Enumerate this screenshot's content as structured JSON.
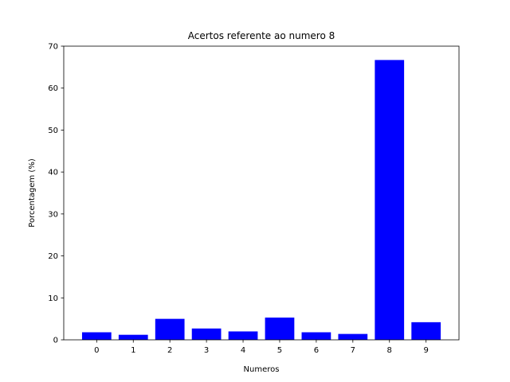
{
  "chart_data": {
    "type": "bar",
    "title": "Acertos referente ao numero 8",
    "xlabel": "Numeros",
    "ylabel": "Porcentagem (%)",
    "categories": [
      "0",
      "1",
      "2",
      "3",
      "4",
      "5",
      "6",
      "7",
      "8",
      "9"
    ],
    "values": [
      1.8,
      1.2,
      5.0,
      2.7,
      2.0,
      5.3,
      1.8,
      1.4,
      66.7,
      4.2
    ],
    "ylim": [
      0,
      70
    ],
    "yticks": [
      0,
      10,
      20,
      30,
      40,
      50,
      60,
      70
    ],
    "bar_color": "#0000ff",
    "grid": false,
    "legend": "none"
  }
}
